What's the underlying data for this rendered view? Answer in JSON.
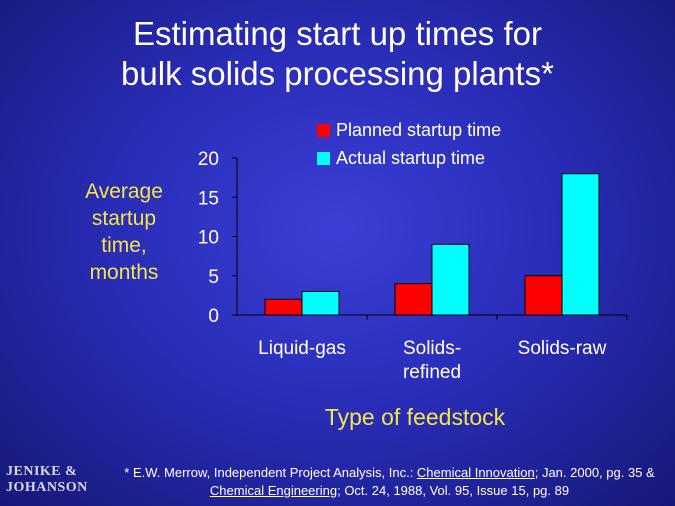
{
  "slide": {
    "title_line1": "Estimating start up times for",
    "title_line2": "bulk solids processing plants*"
  },
  "logo": {
    "line1": "JENIKE &",
    "line2": "JOHANSON"
  },
  "footnote": {
    "part1": "* E.W. Merrow, Independent Project Analysis, Inc.: ",
    "link1": "Chemical Innovation",
    "part2": "; Jan. 2000, pg. 35 &",
    "link2": "Chemical Engineering",
    "part3": "; Oct. 24, 1988, Vol. 95, Issue 15, pg. 89"
  },
  "chart_data": {
    "type": "bar",
    "categories": [
      "Liquid-gas",
      "Solids-refined",
      "Solids-raw"
    ],
    "category_lines": [
      [
        "Liquid-gas"
      ],
      [
        "Solids-",
        "refined"
      ],
      [
        "Solids-raw"
      ]
    ],
    "series": [
      {
        "name": "Planned startup time",
        "values": [
          2,
          4,
          5
        ],
        "color": "#ff0000"
      },
      {
        "name": "Actual startup time",
        "values": [
          3,
          9,
          18
        ],
        "color": "#00ffff"
      }
    ],
    "ylabel_lines": [
      "Average",
      "startup",
      "time,",
      "months"
    ],
    "xlabel": "Type of feedstock",
    "yticks": [
      0,
      5,
      10,
      15,
      20
    ],
    "ylim": [
      0,
      20
    ],
    "grid": false,
    "legend_position": "top-right"
  }
}
